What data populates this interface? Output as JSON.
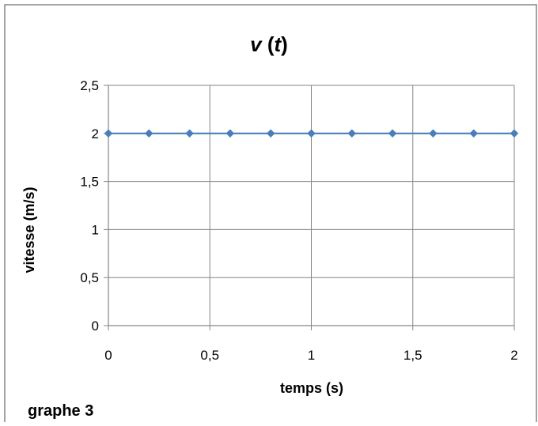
{
  "chart_data": {
    "type": "line",
    "title": "v (t)",
    "title_parts": {
      "variable": "v",
      "open": " (",
      "argument": "t",
      "close": ")"
    },
    "xlabel": "temps (s)",
    "ylabel": "vitesse (m/s)",
    "xlim": [
      0,
      2
    ],
    "ylim": [
      0,
      2.5
    ],
    "x_ticks": [
      0,
      0.5,
      1,
      1.5,
      2
    ],
    "x_tick_labels": [
      "0",
      "0,5",
      "1",
      "1,5",
      "2"
    ],
    "y_ticks": [
      0,
      0.5,
      1,
      1.5,
      2,
      2.5
    ],
    "y_tick_labels": [
      "0",
      "0,5",
      "1",
      "1,5",
      "2",
      "2,5"
    ],
    "grid": true,
    "legend": "none",
    "series": [
      {
        "x": [
          0,
          0.2,
          0.4,
          0.6,
          0.8,
          1.0,
          1.2,
          1.4,
          1.6,
          1.8,
          2.0
        ],
        "y": [
          2,
          2,
          2,
          2,
          2,
          2,
          2,
          2,
          2,
          2,
          2
        ],
        "color": "#4a7ebb",
        "marker": "diamond"
      }
    ]
  },
  "caption": "graphe 3",
  "colors": {
    "grid": "#868686",
    "axis": "#868686",
    "border": "#868686",
    "background": "#ffffff"
  }
}
